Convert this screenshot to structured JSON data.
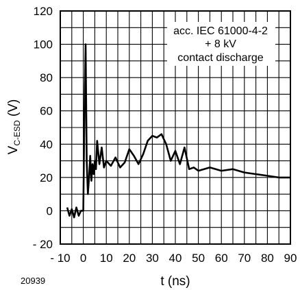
{
  "chart_data": {
    "type": "line",
    "figure_id": "20939",
    "xlabel": "t (ns)",
    "ylabel": {
      "main": "V",
      "subscript": "C-ESD",
      "unit": " (V)"
    },
    "xlim": [
      -10,
      90
    ],
    "ylim": [
      -20,
      120
    ],
    "x_ticks": [
      -10,
      0,
      10,
      20,
      30,
      40,
      50,
      60,
      70,
      80,
      90
    ],
    "x_tick_labels": [
      "- 10",
      "0",
      "10",
      "20",
      "30",
      "40",
      "50",
      "60",
      "70",
      "80",
      "90"
    ],
    "y_ticks": [
      -20,
      0,
      20,
      40,
      60,
      80,
      100,
      120
    ],
    "y_tick_labels": [
      "- 20",
      "0",
      "20",
      "40",
      "60",
      "80",
      "100",
      "120"
    ],
    "grid": {
      "x_every": 5,
      "y_every": 10
    },
    "annotation": [
      "acc. IEC 61000-4-2",
      "+ 8 kV",
      "contact discharge"
    ],
    "annotation_position": "top-right",
    "line_color": "#000000",
    "series": [
      {
        "x": [
          -7,
          -6,
          -5,
          -4,
          -3,
          -2,
          -1,
          0,
          0.5,
          1,
          1.5,
          2,
          2.5,
          3,
          3.5,
          4,
          4.5,
          5,
          5.5,
          6,
          7,
          8,
          9,
          10,
          12,
          14,
          16,
          18,
          20,
          22,
          24,
          26,
          28,
          30,
          32,
          34,
          36,
          38,
          40,
          42,
          44,
          46,
          48,
          50,
          55,
          60,
          65,
          70,
          75,
          80,
          85,
          90
        ],
        "y": [
          2,
          -3,
          1,
          -4,
          2,
          -3,
          0,
          0,
          60,
          100,
          30,
          10,
          20,
          33,
          18,
          28,
          22,
          30,
          25,
          42,
          28,
          38,
          26,
          30,
          27,
          32,
          26,
          29,
          37,
          33,
          28,
          34,
          42,
          45,
          44,
          46,
          40,
          30,
          36,
          28,
          38,
          25,
          26,
          24,
          26,
          24,
          25,
          23,
          22,
          21,
          20,
          20
        ]
      }
    ]
  }
}
